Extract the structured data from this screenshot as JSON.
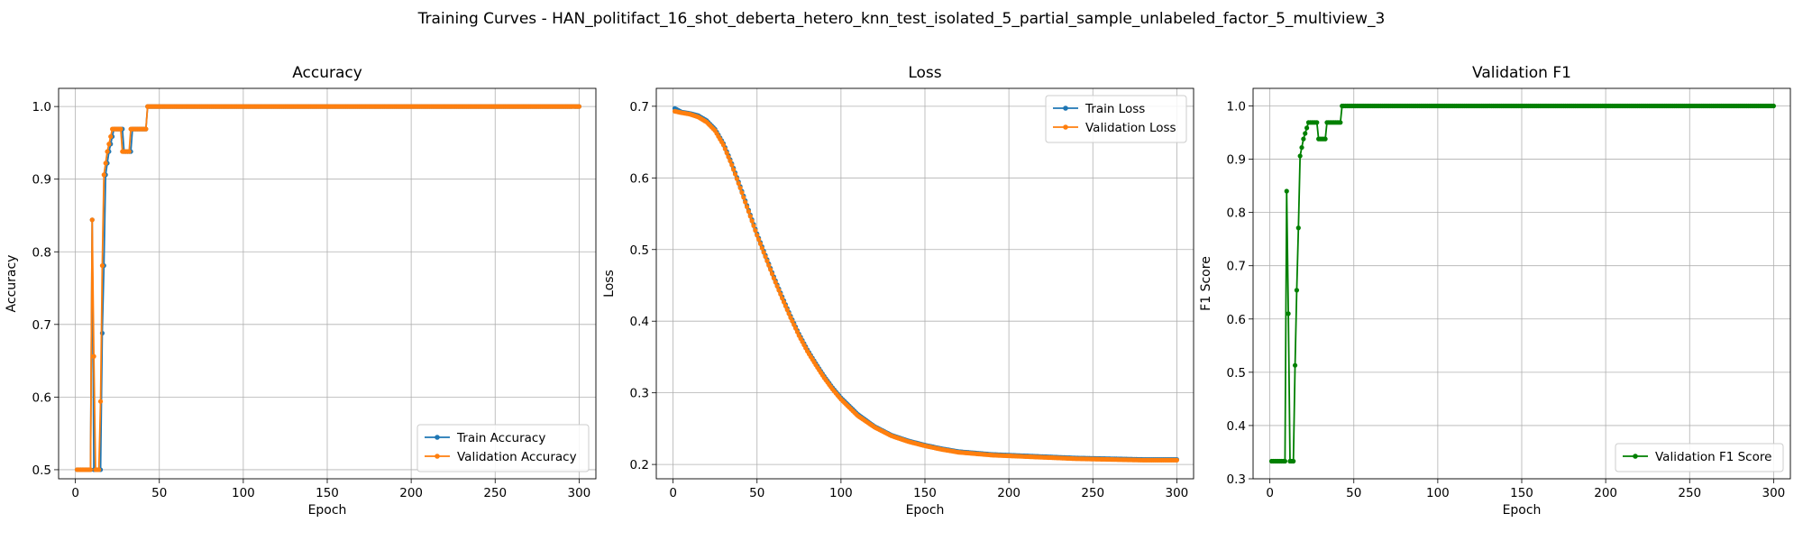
{
  "figure": {
    "title": "Training Curves - HAN_politifact_16_shot_deberta_hetero_knn_test_isolated_5_partial_sample_unlabeled_factor_5_multiview_3"
  },
  "colors": {
    "blue": "#1f77b4",
    "orange": "#ff7f0e",
    "green": "#008000",
    "grid": "#b0b0b0"
  },
  "chart_data": [
    {
      "type": "line",
      "title": "Accuracy",
      "xlabel": "Epoch",
      "ylabel": "Accuracy",
      "xlim": [
        -10,
        310
      ],
      "ylim": [
        0.4875,
        1.025
      ],
      "xticks": [
        0,
        50,
        100,
        150,
        200,
        250,
        300
      ],
      "yticks": [
        0.5,
        0.6,
        0.7,
        0.8,
        0.9,
        1.0
      ],
      "grid": true,
      "legend_position": "lower-right",
      "series": [
        {
          "name": "Train Accuracy",
          "color": "blue",
          "points": [
            [
              1,
              0.5
            ],
            [
              9,
              0.5
            ],
            [
              10,
              0.844
            ],
            [
              11,
              0.5
            ],
            [
              13,
              0.5
            ],
            [
              15,
              0.5
            ],
            [
              16,
              0.688
            ],
            [
              17,
              0.781
            ],
            [
              18,
              0.906
            ],
            [
              20,
              0.938
            ],
            [
              23,
              0.969
            ],
            [
              28,
              0.969
            ],
            [
              29,
              0.938
            ],
            [
              33,
              0.938
            ],
            [
              34,
              0.969
            ],
            [
              42,
              0.969
            ],
            [
              43,
              1.0
            ],
            [
              300,
              1.0
            ]
          ]
        },
        {
          "name": "Validation Accuracy",
          "color": "orange",
          "points": [
            [
              1,
              0.5
            ],
            [
              9,
              0.5
            ],
            [
              10,
              0.844
            ],
            [
              11,
              0.656
            ],
            [
              12,
              0.5
            ],
            [
              14,
              0.5
            ],
            [
              15,
              0.594
            ],
            [
              16,
              0.781
            ],
            [
              17,
              0.906
            ],
            [
              19,
              0.938
            ],
            [
              22,
              0.969
            ],
            [
              27,
              0.969
            ],
            [
              28,
              0.938
            ],
            [
              32,
              0.938
            ],
            [
              33,
              0.969
            ],
            [
              42,
              0.969
            ],
            [
              43,
              1.0
            ],
            [
              300,
              1.0
            ]
          ]
        }
      ]
    },
    {
      "type": "line",
      "title": "Loss",
      "xlabel": "Epoch",
      "ylabel": "Loss",
      "xlim": [
        -10,
        310
      ],
      "ylim": [
        0.18,
        0.725
      ],
      "xticks": [
        0,
        50,
        100,
        150,
        200,
        250,
        300
      ],
      "yticks": [
        0.2,
        0.3,
        0.4,
        0.5,
        0.6,
        0.7
      ],
      "grid": true,
      "legend_position": "upper-right",
      "series": [
        {
          "name": "Train Loss",
          "color": "blue",
          "points": [
            [
              1,
              0.697
            ],
            [
              5,
              0.692
            ],
            [
              10,
              0.69
            ],
            [
              15,
              0.687
            ],
            [
              20,
              0.68
            ],
            [
              25,
              0.668
            ],
            [
              30,
              0.648
            ],
            [
              35,
              0.62
            ],
            [
              40,
              0.588
            ],
            [
              45,
              0.555
            ],
            [
              50,
              0.522
            ],
            [
              55,
              0.492
            ],
            [
              60,
              0.462
            ],
            [
              65,
              0.434
            ],
            [
              70,
              0.407
            ],
            [
              75,
              0.382
            ],
            [
              80,
              0.36
            ],
            [
              85,
              0.341
            ],
            [
              90,
              0.323
            ],
            [
              95,
              0.307
            ],
            [
              100,
              0.293
            ],
            [
              110,
              0.27
            ],
            [
              120,
              0.253
            ],
            [
              130,
              0.241
            ],
            [
              140,
              0.233
            ],
            [
              150,
              0.227
            ],
            [
              160,
              0.222
            ],
            [
              170,
              0.218
            ],
            [
              180,
              0.216
            ],
            [
              190,
              0.214
            ],
            [
              200,
              0.213
            ],
            [
              220,
              0.211
            ],
            [
              240,
              0.209
            ],
            [
              260,
              0.208
            ],
            [
              280,
              0.207
            ],
            [
              300,
              0.207
            ]
          ]
        },
        {
          "name": "Validation Loss",
          "color": "orange",
          "points": [
            [
              1,
              0.693
            ],
            [
              5,
              0.691
            ],
            [
              10,
              0.689
            ],
            [
              15,
              0.685
            ],
            [
              20,
              0.678
            ],
            [
              25,
              0.666
            ],
            [
              30,
              0.646
            ],
            [
              35,
              0.618
            ],
            [
              40,
              0.586
            ],
            [
              45,
              0.553
            ],
            [
              50,
              0.52
            ],
            [
              55,
              0.49
            ],
            [
              60,
              0.46
            ],
            [
              65,
              0.432
            ],
            [
              70,
              0.405
            ],
            [
              75,
              0.38
            ],
            [
              80,
              0.358
            ],
            [
              85,
              0.339
            ],
            [
              90,
              0.321
            ],
            [
              95,
              0.305
            ],
            [
              100,
              0.291
            ],
            [
              110,
              0.268
            ],
            [
              120,
              0.252
            ],
            [
              130,
              0.24
            ],
            [
              140,
              0.232
            ],
            [
              150,
              0.226
            ],
            [
              160,
              0.221
            ],
            [
              170,
              0.217
            ],
            [
              180,
              0.215
            ],
            [
              190,
              0.213
            ],
            [
              200,
              0.212
            ],
            [
              220,
              0.21
            ],
            [
              240,
              0.208
            ],
            [
              260,
              0.207
            ],
            [
              280,
              0.206
            ],
            [
              300,
              0.206
            ]
          ]
        }
      ]
    },
    {
      "type": "line",
      "title": "Validation F1",
      "xlabel": "Epoch",
      "ylabel": "F1 Score",
      "xlim": [
        -10,
        310
      ],
      "ylim": [
        0.3,
        1.033
      ],
      "xticks": [
        0,
        50,
        100,
        150,
        200,
        250,
        300
      ],
      "yticks": [
        0.3,
        0.4,
        0.5,
        0.6,
        0.7,
        0.8,
        0.9,
        1.0
      ],
      "grid": true,
      "legend_position": "lower-right",
      "series": [
        {
          "name": "Validation F1 Score",
          "color": "green",
          "points": [
            [
              1,
              0.333
            ],
            [
              9,
              0.333
            ],
            [
              10,
              0.84
            ],
            [
              11,
              0.61
            ],
            [
              12,
              0.333
            ],
            [
              14,
              0.333
            ],
            [
              15,
              0.513
            ],
            [
              16,
              0.654
            ],
            [
              17,
              0.771
            ],
            [
              18,
              0.906
            ],
            [
              20,
              0.938
            ],
            [
              23,
              0.969
            ],
            [
              28,
              0.969
            ],
            [
              29,
              0.938
            ],
            [
              33,
              0.938
            ],
            [
              34,
              0.969
            ],
            [
              42,
              0.969
            ],
            [
              43,
              1.0
            ],
            [
              300,
              1.0
            ]
          ]
        }
      ]
    }
  ]
}
